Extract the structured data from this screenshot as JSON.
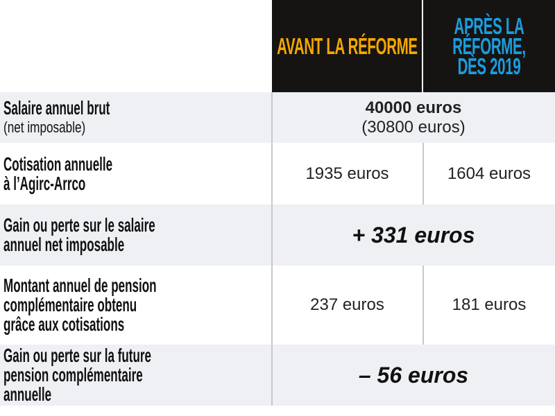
{
  "header": {
    "before": "AVANT LA RÉFORME",
    "after": "APRÈS LA RÉFORME, DÈS 2019",
    "before_color": "#f5a800",
    "after_color": "#1a9ee0"
  },
  "rows": [
    {
      "label": "Salaire annuel brut",
      "sublabel": "(net imposable)",
      "value": "40000 euros",
      "subvalue": "(30800 euros)"
    },
    {
      "label": "Cotisation annuelle",
      "label2": "à l’Agirc-Arrco",
      "before": "1935 euros",
      "after": "1604 euros"
    },
    {
      "label": "Gain ou perte sur le salaire",
      "label2": "annuel net imposable",
      "value": "+ 331 euros"
    },
    {
      "label": "Montant annuel de pension",
      "label2": "complémentaire obtenu",
      "label3": "grâce aux cotisations",
      "before": "237 euros",
      "after": "181 euros"
    },
    {
      "label": "Gain ou perte sur la future",
      "label2": "pension complémentaire",
      "label3": "annuelle",
      "value": "– 56 euros"
    }
  ]
}
